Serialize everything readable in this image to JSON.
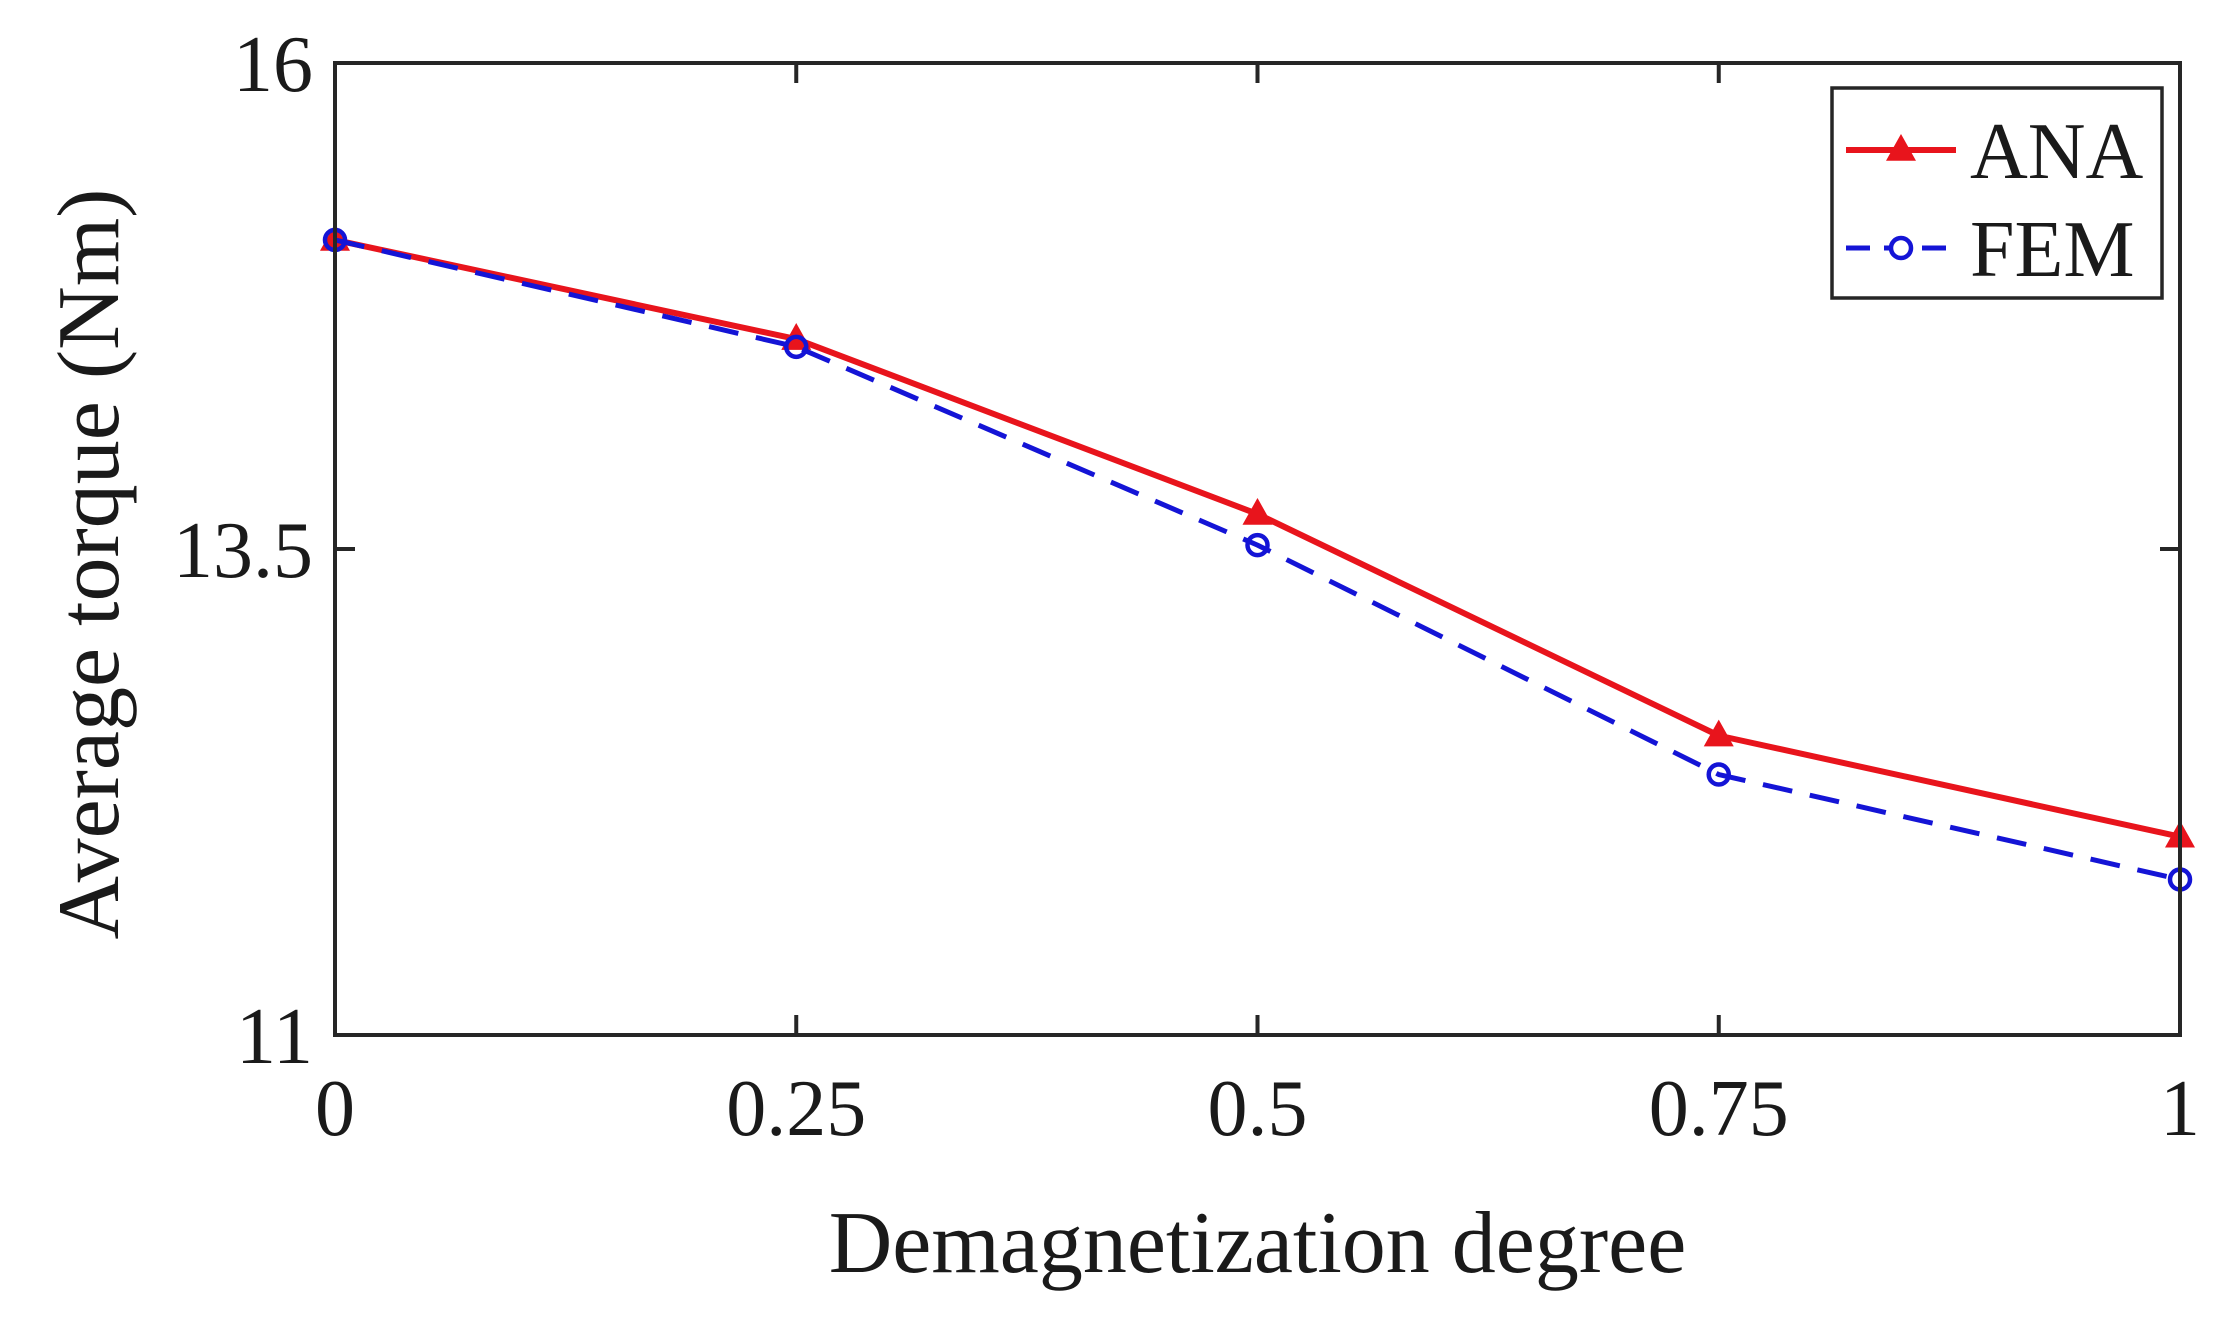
{
  "chart_data": {
    "type": "line",
    "title": "",
    "xlabel": "Demagnetization degree",
    "ylabel": "Average torque (Nm)",
    "x": [
      0,
      0.25,
      0.5,
      0.75,
      1
    ],
    "xticks": [
      0,
      0.25,
      0.5,
      0.75,
      1
    ],
    "xtick_labels": [
      "0",
      "0.25",
      "0.5",
      "0.75",
      "1"
    ],
    "yticks": [
      11,
      13.5,
      16
    ],
    "ytick_labels": [
      "11",
      "13.5",
      "16"
    ],
    "xlim": [
      0,
      1
    ],
    "ylim": [
      11,
      16
    ],
    "grid": false,
    "legend_position": "top-right",
    "series": [
      {
        "name": "ANA",
        "values": [
          15.09,
          14.58,
          13.68,
          12.54,
          12.02
        ],
        "color": "#e8141c",
        "line_style": "solid",
        "marker": "triangle"
      },
      {
        "name": "FEM",
        "values": [
          15.09,
          14.54,
          13.52,
          12.34,
          11.8
        ],
        "color": "#1414d6",
        "line_style": "dashed",
        "marker": "circle"
      }
    ]
  }
}
